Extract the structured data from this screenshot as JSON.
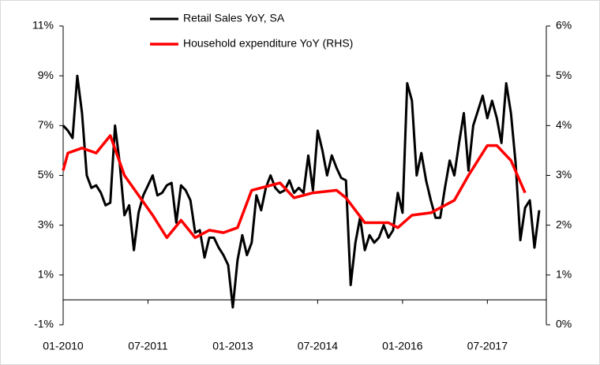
{
  "chart_data": {
    "type": "line",
    "x": [
      "01-2010",
      "02-2010",
      "03-2010",
      "04-2010",
      "05-2010",
      "06-2010",
      "07-2010",
      "08-2010",
      "09-2010",
      "10-2010",
      "11-2010",
      "12-2010",
      "01-2011",
      "02-2011",
      "03-2011",
      "04-2011",
      "05-2011",
      "06-2011",
      "07-2011",
      "08-2011",
      "09-2011",
      "10-2011",
      "11-2011",
      "12-2011",
      "01-2012",
      "02-2012",
      "03-2012",
      "04-2012",
      "05-2012",
      "06-2012",
      "07-2012",
      "08-2012",
      "09-2012",
      "10-2012",
      "11-2012",
      "12-2012",
      "01-2013",
      "02-2013",
      "03-2013",
      "04-2013",
      "05-2013",
      "06-2013",
      "07-2013",
      "08-2013",
      "09-2013",
      "10-2013",
      "11-2013",
      "12-2013",
      "01-2014",
      "02-2014",
      "03-2014",
      "04-2014",
      "05-2014",
      "06-2014",
      "07-2014",
      "08-2014",
      "09-2014",
      "10-2014",
      "11-2014",
      "12-2014",
      "01-2015",
      "02-2015",
      "03-2015",
      "04-2015",
      "05-2015",
      "06-2015",
      "07-2015",
      "08-2015",
      "09-2015",
      "10-2015",
      "11-2015",
      "12-2015",
      "01-2016",
      "02-2016",
      "03-2016",
      "04-2016",
      "05-2016",
      "06-2016",
      "07-2016",
      "08-2016",
      "09-2016",
      "10-2016",
      "11-2016",
      "12-2016",
      "01-2017",
      "02-2017",
      "03-2017",
      "04-2017",
      "05-2017",
      "06-2017",
      "07-2017",
      "08-2017",
      "09-2017",
      "10-2017",
      "11-2017",
      "12-2017",
      "01-2018",
      "02-2018",
      "03-2018",
      "04-2018",
      "05-2018",
      "06-2018"
    ],
    "series": [
      {
        "name": "Retail Sales YoY, SA",
        "color": "#000000",
        "values": [
          7.0,
          6.8,
          6.5,
          9.0,
          7.5,
          5.0,
          4.5,
          4.6,
          4.3,
          3.8,
          3.9,
          7.0,
          5.5,
          3.4,
          3.8,
          2.0,
          3.5,
          4.2,
          4.6,
          5.0,
          4.2,
          4.3,
          4.6,
          4.7,
          3.1,
          4.6,
          4.4,
          4.0,
          2.7,
          2.8,
          1.7,
          2.5,
          2.5,
          2.1,
          1.8,
          1.4,
          -0.3,
          1.6,
          2.6,
          1.8,
          2.3,
          4.2,
          3.6,
          4.5,
          5.0,
          4.5,
          4.3,
          4.4,
          4.8,
          4.3,
          4.5,
          4.3,
          5.8,
          4.4,
          6.8,
          6.0,
          5.0,
          5.8,
          5.3,
          4.9,
          4.8,
          0.6,
          2.3,
          3.3,
          2.0,
          2.6,
          2.3,
          2.5,
          3.0,
          2.5,
          2.8,
          4.3,
          3.5,
          8.7,
          8.0,
          5.0,
          5.9,
          4.8,
          4.0,
          3.3,
          3.3,
          4.5,
          5.6,
          5.0,
          6.3,
          7.5,
          5.2,
          7.0,
          7.6,
          8.2,
          7.3,
          8.0,
          7.3,
          6.3,
          8.7,
          7.5,
          5.5,
          2.4,
          3.7,
          4.0,
          2.1,
          3.6
        ]
      },
      {
        "name": "Household expenditure YoY (RHS)",
        "color": "#ff0000",
        "axis": "y2",
        "x": [
          "01-2010",
          "02-2010",
          "05-2010",
          "08-2010",
          "11-2010",
          "02-2011",
          "05-2011",
          "08-2011",
          "11-2011",
          "02-2012",
          "05-2012",
          "08-2012",
          "11-2012",
          "02-2013",
          "05-2013",
          "11-2013",
          "02-2014",
          "06-2014",
          "11-2014",
          "01-2015",
          "05-2015",
          "10-2015",
          "12-2015",
          "03-2016",
          "07-2016",
          "12-2016",
          "03-2017",
          "07-2017",
          "09-2017",
          "12-2017",
          "03-2018"
        ],
        "values": [
          3.1,
          3.45,
          3.55,
          3.45,
          3.8,
          3.0,
          2.6,
          2.2,
          1.75,
          2.1,
          1.75,
          1.9,
          1.85,
          1.95,
          2.7,
          2.85,
          2.55,
          2.65,
          2.7,
          2.55,
          2.05,
          2.05,
          1.95,
          2.2,
          2.25,
          2.5,
          3.0,
          3.6,
          3.6,
          3.3,
          2.65
        ]
      }
    ],
    "ylim": [
      -1,
      11
    ],
    "yticks": [
      {
        "value": -1,
        "label": "-1%"
      },
      {
        "value": 1,
        "label": "1%"
      },
      {
        "value": 3,
        "label": "3%"
      },
      {
        "value": 5,
        "label": "5%"
      },
      {
        "value": 7,
        "label": "7%"
      },
      {
        "value": 9,
        "label": "9%"
      },
      {
        "value": 11,
        "label": "11%"
      }
    ],
    "y2lim": [
      0,
      6
    ],
    "y2ticks": [
      {
        "value": 0,
        "label": "0%"
      },
      {
        "value": 1,
        "label": "1%"
      },
      {
        "value": 2,
        "label": "2%"
      },
      {
        "value": 3,
        "label": "3%"
      },
      {
        "value": 4,
        "label": "4%"
      },
      {
        "value": 5,
        "label": "5%"
      },
      {
        "value": 6,
        "label": "6%"
      }
    ],
    "xticks": [
      "01-2010",
      "07-2011",
      "01-2013",
      "07-2014",
      "01-2016",
      "07-2017"
    ],
    "legend": "top"
  }
}
